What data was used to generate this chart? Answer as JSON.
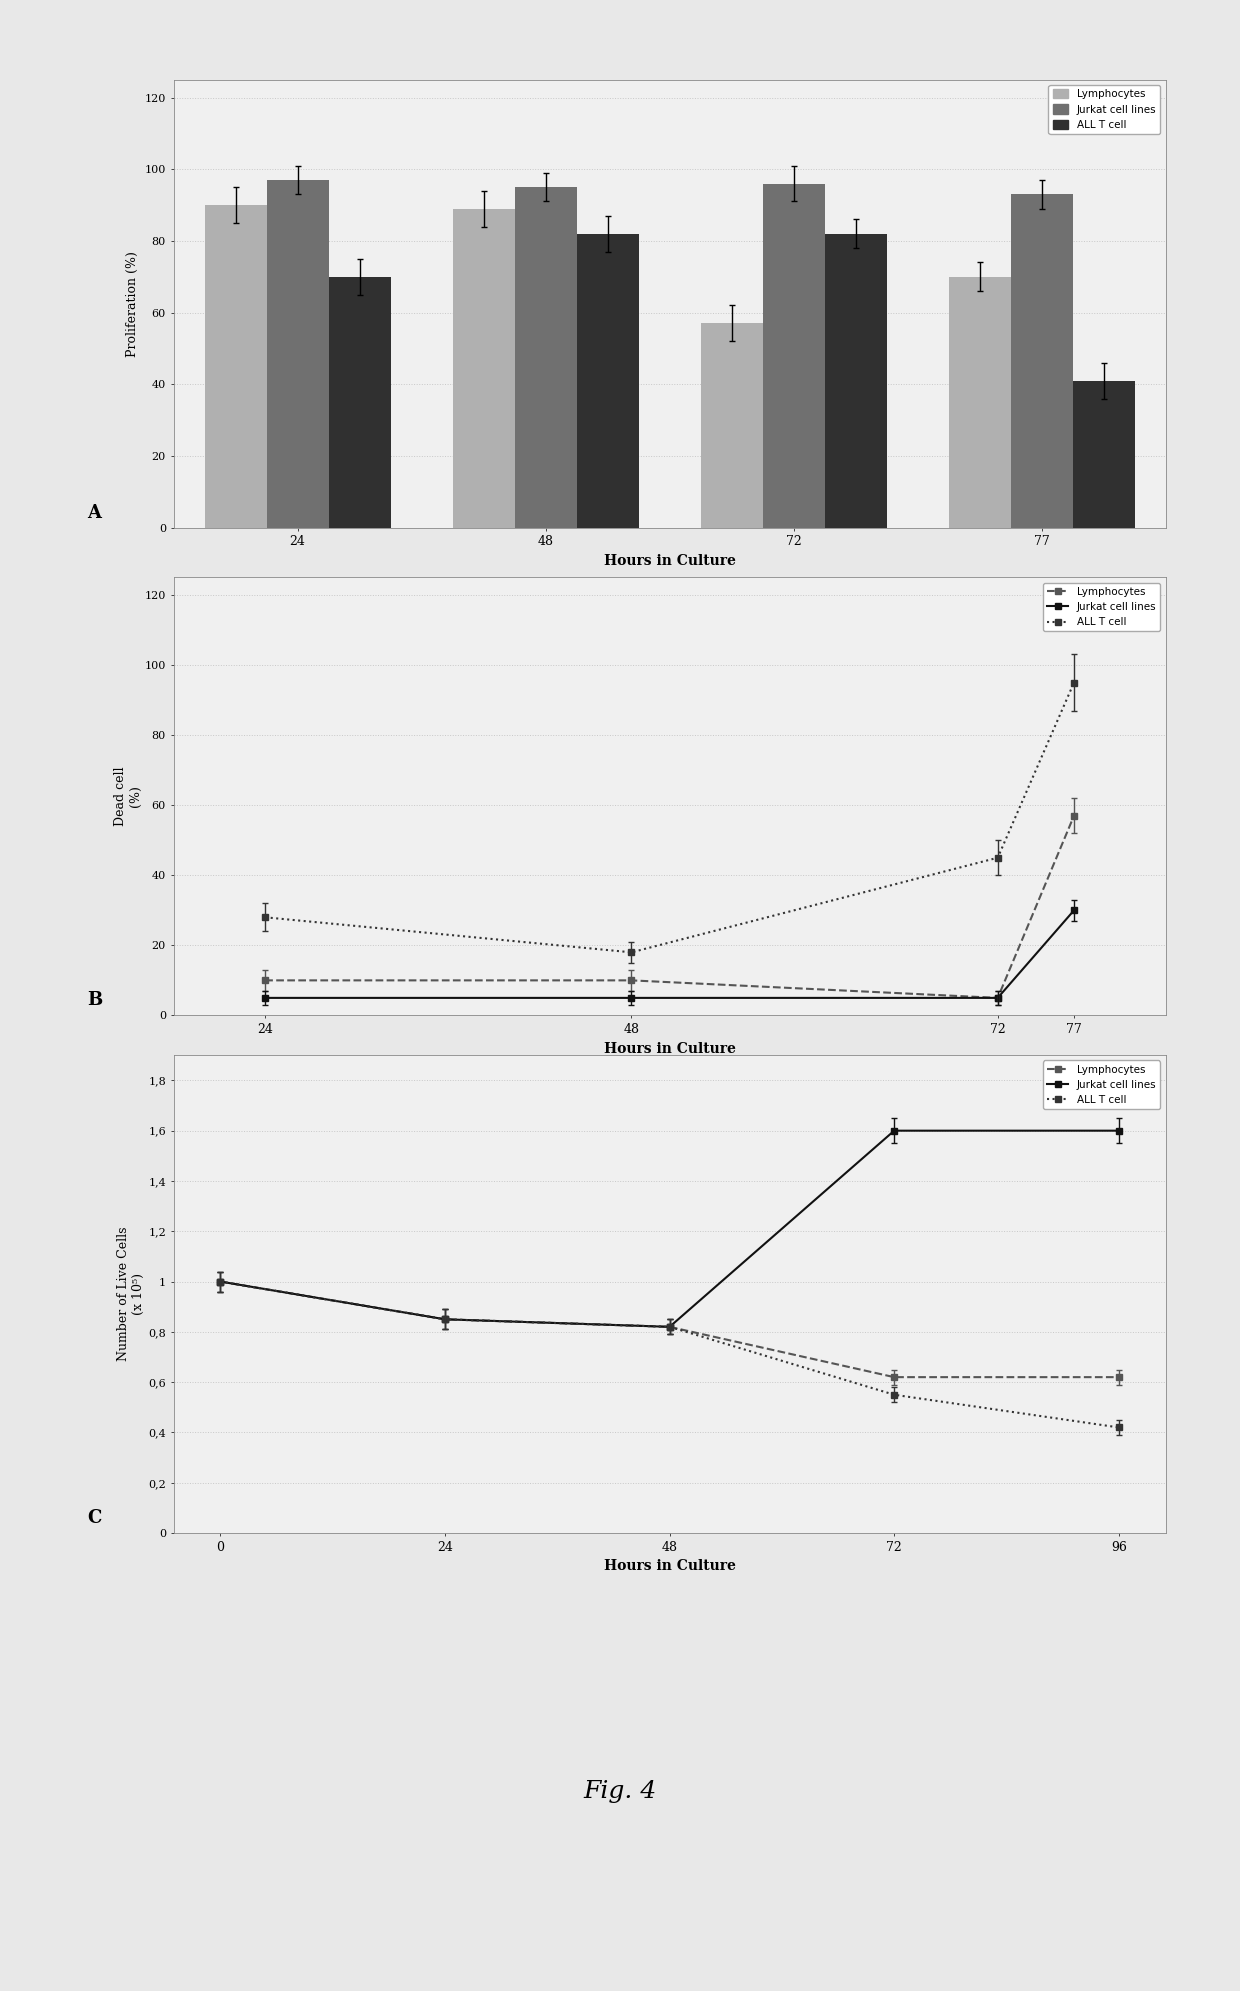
{
  "panel_A": {
    "xlabel": "Hours in Culture",
    "ylabel": "Proliferation (%)",
    "x_ticks": [
      24,
      48,
      72,
      77
    ],
    "x_labels": [
      "24",
      "48",
      "72",
      "77"
    ],
    "ylim": [
      0,
      125
    ],
    "yticks": [
      0,
      20,
      40,
      60,
      80,
      100,
      120
    ],
    "bar_width": 0.25,
    "series": [
      {
        "label": "Lymphocytes",
        "color": "#b0b0b0",
        "values": [
          90,
          89,
          57,
          70
        ],
        "errors": [
          5,
          5,
          5,
          4
        ]
      },
      {
        "label": "Jurkat cell lines",
        "color": "#707070",
        "values": [
          97,
          95,
          96,
          93
        ],
        "errors": [
          4,
          4,
          5,
          4
        ]
      },
      {
        "label": "ALL T cell",
        "color": "#303030",
        "values": [
          70,
          82,
          82,
          41
        ],
        "errors": [
          5,
          5,
          4,
          5
        ]
      }
    ]
  },
  "panel_B": {
    "xlabel": "Hours in Culture",
    "ylabel": "Dead cell\n(%)",
    "x_ticks": [
      24,
      48,
      72,
      77
    ],
    "x_labels": [
      "24",
      "48",
      "72",
      "77"
    ],
    "ylim": [
      0,
      125
    ],
    "yticks": [
      0,
      20,
      40,
      60,
      80,
      100,
      120
    ],
    "series": [
      {
        "label": "Lymphocytes",
        "linestyle": "--",
        "color": "#555555",
        "marker": "s",
        "markersize": 4,
        "values": [
          10,
          10,
          5,
          57
        ],
        "errors": [
          3,
          3,
          2,
          5
        ]
      },
      {
        "label": "Jurkat cell lines",
        "linestyle": "-",
        "color": "#111111",
        "marker": "s",
        "markersize": 4,
        "values": [
          5,
          5,
          5,
          30
        ],
        "errors": [
          2,
          2,
          2,
          3
        ]
      },
      {
        "label": "ALL T cell",
        "linestyle": ":",
        "color": "#333333",
        "marker": "s",
        "markersize": 4,
        "values": [
          28,
          18,
          45,
          95
        ],
        "errors": [
          4,
          3,
          5,
          8
        ]
      }
    ]
  },
  "panel_C": {
    "xlabel": "Hours in Culture",
    "ylabel": "Number of Live Cells\n(x 10⁵)",
    "x_ticks": [
      0,
      24,
      48,
      72,
      96
    ],
    "x_labels": [
      "0",
      "24",
      "48",
      "72",
      "96"
    ],
    "ylim": [
      0,
      1.9
    ],
    "yticks": [
      0,
      0.2,
      0.4,
      0.6,
      0.8,
      1.0,
      1.2,
      1.4,
      1.6,
      1.8
    ],
    "yticklabels": [
      "0",
      "0,2",
      "0,4",
      "0,6",
      "0,8",
      "1",
      "1,2",
      "1,4",
      "1,6",
      "1,8"
    ],
    "series": [
      {
        "label": "Lymphocytes",
        "linestyle": "--",
        "color": "#555555",
        "marker": "s",
        "markersize": 4,
        "values": [
          1.0,
          0.85,
          0.82,
          0.62,
          0.62
        ],
        "errors": [
          0.04,
          0.04,
          0.03,
          0.03,
          0.03
        ]
      },
      {
        "label": "Jurkat cell lines",
        "linestyle": "-",
        "color": "#111111",
        "marker": "s",
        "markersize": 4,
        "values": [
          1.0,
          0.85,
          0.82,
          1.6,
          1.6
        ],
        "errors": [
          0.04,
          0.04,
          0.03,
          0.05,
          0.05
        ]
      },
      {
        "label": "ALL T cell",
        "linestyle": ":",
        "color": "#333333",
        "marker": "s",
        "markersize": 4,
        "values": [
          1.0,
          0.85,
          0.82,
          0.55,
          0.42
        ],
        "errors": [
          0.04,
          0.04,
          0.03,
          0.03,
          0.03
        ]
      }
    ]
  },
  "fig_label": "Fig. 4",
  "fig_bg": "#e8e8e8",
  "panel_bg": "#f0f0f0",
  "grid_color": "#c8c8c8",
  "grid_style": ":"
}
